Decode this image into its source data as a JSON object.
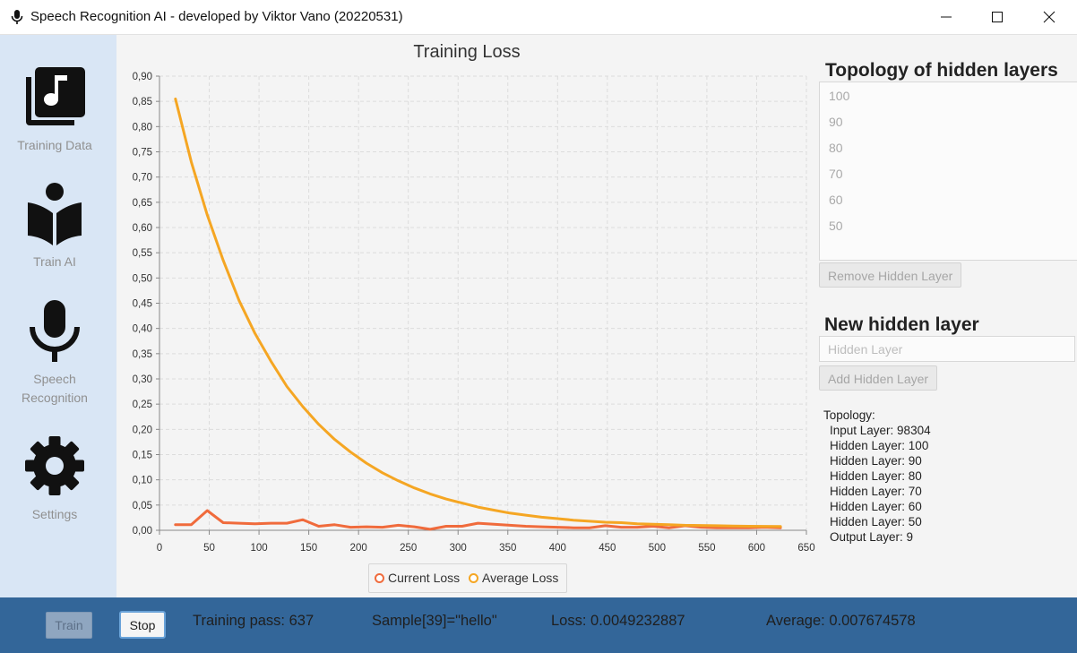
{
  "window": {
    "title": "Speech Recognition AI - developed by Viktor Vano (20220531)",
    "controls": [
      "minimize-icon",
      "maximize-icon",
      "close-icon"
    ]
  },
  "sidebar": {
    "items": [
      {
        "label": "Training Data",
        "icon": "music-library-icon"
      },
      {
        "label": "Train AI",
        "icon": "reading-person-icon"
      },
      {
        "label": "Speech Recognition",
        "icon": "microphone-icon"
      },
      {
        "label": "Settings",
        "icon": "gear-icon"
      }
    ]
  },
  "chart_data": {
    "type": "line",
    "title": "Training Loss",
    "xlim": [
      0,
      650
    ],
    "ylim": [
      0,
      0.9
    ],
    "x_ticks": [
      "0",
      "50",
      "100",
      "150",
      "200",
      "250",
      "300",
      "350",
      "400",
      "450",
      "500",
      "550",
      "600",
      "650"
    ],
    "y_ticks": [
      "0,00",
      "0,05",
      "0,10",
      "0,15",
      "0,20",
      "0,25",
      "0,30",
      "0,35",
      "0,40",
      "0,45",
      "0,50",
      "0,55",
      "0,60",
      "0,65",
      "0,70",
      "0,75",
      "0,80",
      "0,85",
      "0,90"
    ],
    "grid": true,
    "legend_position": "bottom",
    "series": [
      {
        "name": "Current Loss",
        "color": "#f06b3c",
        "x": [
          16,
          32,
          48,
          64,
          80,
          96,
          112,
          128,
          144,
          160,
          176,
          192,
          208,
          224,
          240,
          256,
          272,
          288,
          304,
          320,
          336,
          352,
          368,
          384,
          400,
          416,
          432,
          448,
          464,
          480,
          496,
          512,
          528,
          544,
          560,
          576,
          592,
          608,
          624
        ],
        "y": [
          0.011,
          0.011,
          0.039,
          0.015,
          0.014,
          0.013,
          0.014,
          0.014,
          0.021,
          0.008,
          0.011,
          0.006,
          0.007,
          0.006,
          0.01,
          0.007,
          0.002,
          0.008,
          0.008,
          0.014,
          0.012,
          0.01,
          0.008,
          0.007,
          0.006,
          0.005,
          0.005,
          0.009,
          0.006,
          0.006,
          0.008,
          0.005,
          0.009,
          0.006,
          0.005,
          0.005,
          0.005,
          0.006,
          0.005
        ]
      },
      {
        "name": "Average Loss",
        "color": "#f5a623",
        "x": [
          16,
          32,
          48,
          64,
          80,
          96,
          112,
          128,
          144,
          160,
          176,
          192,
          208,
          224,
          240,
          256,
          272,
          288,
          304,
          320,
          336,
          352,
          368,
          384,
          400,
          416,
          432,
          448,
          464,
          480,
          496,
          512,
          528,
          544,
          560,
          576,
          592,
          608,
          624
        ],
        "y": [
          0.855,
          0.73,
          0.625,
          0.535,
          0.455,
          0.39,
          0.335,
          0.285,
          0.245,
          0.21,
          0.18,
          0.155,
          0.133,
          0.114,
          0.098,
          0.084,
          0.072,
          0.062,
          0.054,
          0.046,
          0.04,
          0.034,
          0.03,
          0.026,
          0.023,
          0.02,
          0.018,
          0.016,
          0.015,
          0.013,
          0.012,
          0.011,
          0.01,
          0.0095,
          0.009,
          0.0085,
          0.008,
          0.0078,
          0.0077
        ]
      }
    ]
  },
  "right_panel": {
    "topology_heading": "Topology of hidden layers",
    "topology_layers": [
      "100",
      "90",
      "80",
      "70",
      "60",
      "50"
    ],
    "remove_button": "Remove Hidden Layer",
    "new_layer_heading": "New hidden layer",
    "new_layer_placeholder": "Hidden Layer",
    "add_button": "Add Hidden Layer",
    "topology_summary": [
      "Topology:",
      "Input Layer: 98304",
      "Hidden Layer: 100",
      "Hidden Layer: 90",
      "Hidden Layer: 80",
      "Hidden Layer: 70",
      "Hidden Layer: 60",
      "Hidden Layer: 50",
      "Output Layer: 9"
    ]
  },
  "bottom_bar": {
    "train_button": "Train",
    "stop_button": "Stop",
    "training_pass": "Training pass: 637",
    "sample": "Sample[39]=\"hello\"",
    "loss": "Loss: 0.0049232887",
    "average": "Average: 0.007674578"
  }
}
